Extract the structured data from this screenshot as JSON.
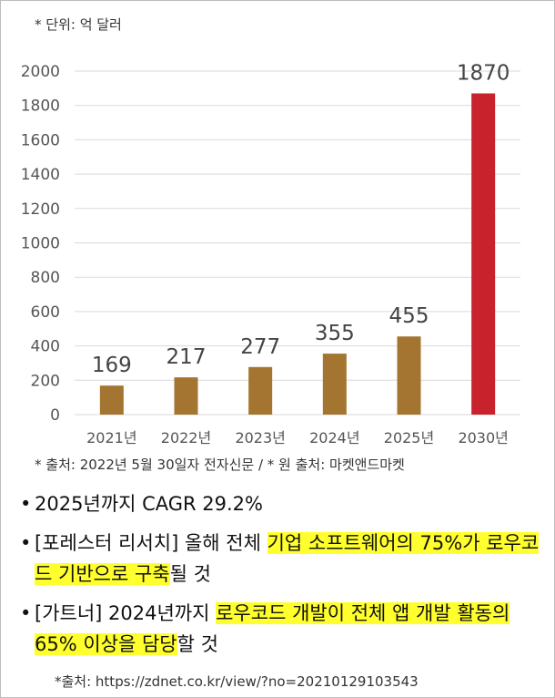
{
  "unit_note": "* 단위: 억 달러",
  "source_note": "* 출처: 2022년 5월 30일자 전자신문 / * 원 출처: 마켓앤드마켓",
  "bullets": [
    {
      "parts": [
        {
          "text": "2025년까지 CAGR 29.2%",
          "highlight": false
        }
      ]
    },
    {
      "parts": [
        {
          "text": "[포레스터 리서치] 올해 전체 ",
          "highlight": false
        },
        {
          "text": "기업 소프트웨어의 75%가 로우코드 기반으로 구축",
          "highlight": true
        },
        {
          "text": "될 것",
          "highlight": false
        }
      ]
    },
    {
      "parts": [
        {
          "text": "[가트너] 2024년까지 ",
          "highlight": false
        },
        {
          "text": "로우코드 개발이 전체 앱 개발 활동의 65% 이상을 담당",
          "highlight": true
        },
        {
          "text": "할 것",
          "highlight": false
        }
      ]
    }
  ],
  "bullet_marker": "•",
  "footer_source": "*출처: https://zdnet.co.kr/view/?no=20210129103543",
  "colors": {
    "bar": "#a37530",
    "highlight_bar": "#c8232c",
    "grid": "#d9d9d9",
    "text_highlight": "#ffff2e"
  },
  "chart_data": {
    "type": "bar",
    "categories": [
      "2021년",
      "2022년",
      "2023년",
      "2024년",
      "2025년",
      "2030년"
    ],
    "values": [
      169,
      217,
      277,
      355,
      455,
      1870
    ],
    "data_labels": [
      "169",
      "217",
      "277",
      "355",
      "455",
      "1870"
    ],
    "highlighted_category": "2030년",
    "title": "",
    "xlabel": "",
    "ylabel": "",
    "ylim": [
      0,
      2000
    ],
    "yticks": [
      0,
      200,
      400,
      600,
      800,
      1000,
      1200,
      1400,
      1600,
      1800,
      2000
    ],
    "grid": true,
    "legend": false
  }
}
